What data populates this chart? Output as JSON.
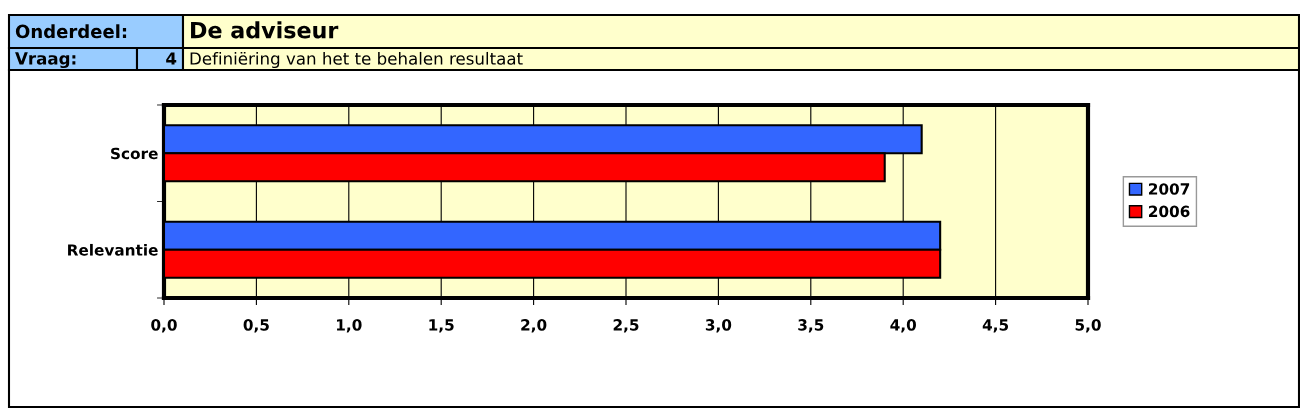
{
  "chart_data": {
    "type": "bar",
    "orientation": "horizontal",
    "title": "De adviseur",
    "subtitle": "Definiëring van het te behalen resultaat",
    "annotations": [
      "Onderdeel:",
      "Vraag:",
      "4"
    ],
    "categories": [
      "Score",
      "Relevantie"
    ],
    "series": [
      {
        "name": "2007",
        "color": "#3366ff",
        "values": [
          4.1,
          4.2
        ]
      },
      {
        "name": "2006",
        "color": "#ff0000",
        "values": [
          3.9,
          4.2
        ]
      }
    ],
    "xlim": [
      0,
      5
    ],
    "xticks": [
      {
        "value": 0,
        "label": "0,0"
      },
      {
        "value": 0.5,
        "label": "0,5"
      },
      {
        "value": 1,
        "label": "1,0"
      },
      {
        "value": 1.5,
        "label": "1,5"
      },
      {
        "value": 2,
        "label": "2,0"
      },
      {
        "value": 2.5,
        "label": "2,5"
      },
      {
        "value": 3,
        "label": "3,0"
      },
      {
        "value": 3.5,
        "label": "3,5"
      },
      {
        "value": 4,
        "label": "4,0"
      },
      {
        "value": 4.5,
        "label": "4,5"
      },
      {
        "value": 5,
        "label": "5,0"
      }
    ],
    "grid": "x",
    "legend": "right"
  }
}
